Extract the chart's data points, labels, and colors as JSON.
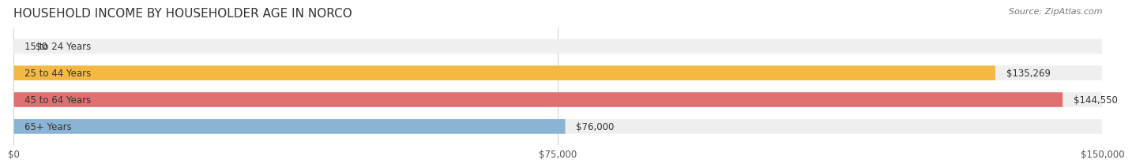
{
  "title": "HOUSEHOLD INCOME BY HOUSEHOLDER AGE IN NORCO",
  "source": "Source: ZipAtlas.com",
  "categories": [
    "15 to 24 Years",
    "25 to 44 Years",
    "45 to 64 Years",
    "65+ Years"
  ],
  "values": [
    0,
    135269,
    144550,
    76000
  ],
  "bar_colors": [
    "#f4a0b0",
    "#f5b942",
    "#e07070",
    "#8ab4d4"
  ],
  "bar_bg_color": "#efefef",
  "label_values": [
    "$0",
    "$135,269",
    "$144,550",
    "$76,000"
  ],
  "xlim": [
    0,
    150000
  ],
  "xticks": [
    0,
    75000,
    150000
  ],
  "xtick_labels": [
    "$0",
    "$75,000",
    "$150,000"
  ],
  "bar_height": 0.55,
  "background_color": "#ffffff",
  "title_fontsize": 11,
  "source_fontsize": 8,
  "label_fontsize": 8.5,
  "tick_fontsize": 8.5
}
